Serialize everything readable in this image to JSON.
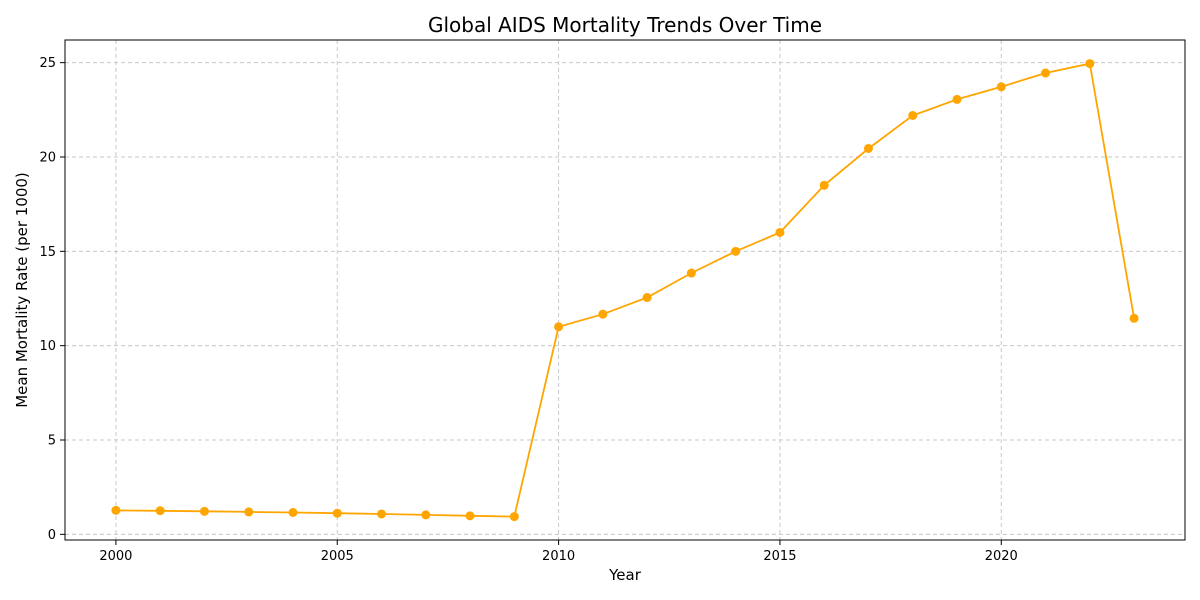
{
  "chart_data": {
    "type": "line",
    "title": "Global AIDS Mortality Trends Over Time",
    "xlabel": "Year",
    "ylabel": "Mean Mortality Rate (per 1000)",
    "xlim": [
      1998.85,
      2024.15
    ],
    "ylim": [
      -0.3,
      26.2
    ],
    "x_ticks": [
      2000,
      2005,
      2010,
      2015,
      2020
    ],
    "y_ticks": [
      0,
      5,
      10,
      15,
      20,
      25
    ],
    "grid": true,
    "color": "#FFA500",
    "series": [
      {
        "x": [
          2000,
          2001,
          2002,
          2003,
          2004,
          2005,
          2006,
          2007,
          2008,
          2009,
          2010,
          2011,
          2012,
          2013,
          2014,
          2015,
          2016,
          2017,
          2018,
          2019,
          2020,
          2021,
          2022,
          2023
        ],
        "values": [
          1.27,
          1.25,
          1.22,
          1.19,
          1.16,
          1.12,
          1.08,
          1.03,
          0.98,
          0.94,
          11.0,
          11.67,
          12.55,
          13.85,
          15.0,
          16.0,
          18.5,
          20.45,
          22.2,
          23.05,
          23.72,
          24.45,
          24.95,
          11.45
        ]
      }
    ]
  }
}
